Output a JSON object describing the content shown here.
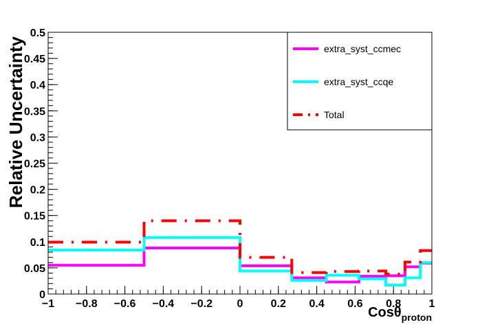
{
  "chart_data": {
    "type": "line",
    "step": true,
    "xlabel_main": "Cosθ",
    "xlabel_sub": "proton",
    "ylabel": "Relative Uncertainty",
    "xlim": [
      -1,
      1
    ],
    "ylim": [
      0,
      0.5
    ],
    "x_ticks": [
      -1,
      -0.8,
      -0.6,
      -0.4,
      -0.2,
      0,
      0.2,
      0.4,
      0.6,
      0.8,
      1
    ],
    "x_tick_labels": [
      "−1",
      "−0.8",
      "−0.6",
      "−0.4",
      "−0.2",
      "0",
      "0.2",
      "0.4",
      "0.6",
      "0.8",
      "1"
    ],
    "y_ticks": [
      0,
      0.05,
      0.1,
      0.15,
      0.2,
      0.25,
      0.3,
      0.35,
      0.4,
      0.45,
      0.5
    ],
    "y_tick_labels": [
      "0",
      "0.05",
      "0.1",
      "0.15",
      "0.2",
      "0.25",
      "0.3",
      "0.35",
      "0.4",
      "0.45",
      "0.5"
    ],
    "bin_edges": [
      -1,
      -0.5,
      0,
      0.27,
      0.45,
      0.62,
      0.76,
      0.86,
      0.94,
      1
    ],
    "legend_position": "top-right",
    "series": [
      {
        "name": "extra_syst_ccmec",
        "color": "#ff00ff",
        "dash": "solid",
        "values": [
          0.055,
          0.088,
          0.054,
          0.031,
          0.023,
          0.034,
          0.035,
          0.052,
          0.059
        ]
      },
      {
        "name": "extra_syst_ccqe",
        "color": "#00ffff",
        "dash": "solid",
        "values": [
          0.084,
          0.108,
          0.044,
          0.026,
          0.036,
          0.029,
          0.017,
          0.031,
          0.06
        ]
      },
      {
        "name": "Total",
        "color": "#ff0000",
        "dash": "dashdot",
        "values": [
          0.099,
          0.14,
          0.07,
          0.041,
          0.043,
          0.044,
          0.038,
          0.061,
          0.083
        ]
      }
    ]
  }
}
